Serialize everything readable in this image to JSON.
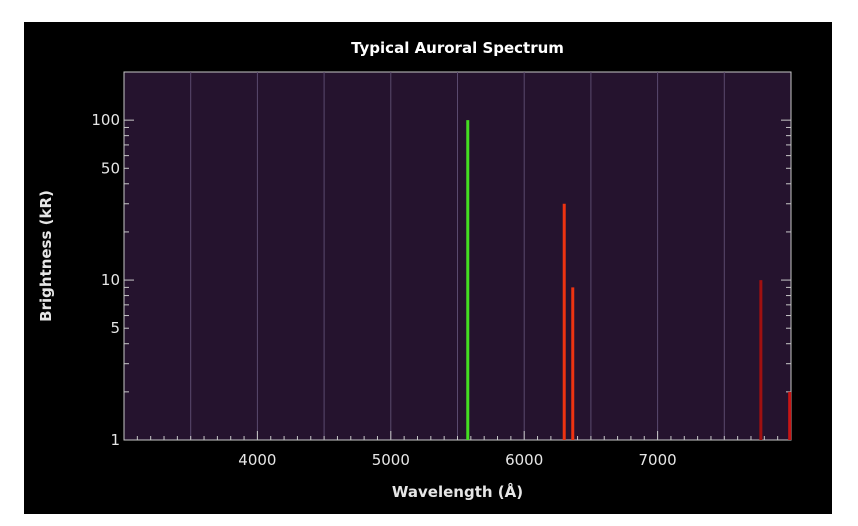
{
  "chart_data": {
    "type": "bar",
    "title": "Typical Auroral Spectrum",
    "xlabel": "Wavelength (Å)",
    "ylabel": "Brightness (kR)",
    "xlim": [
      3000,
      8000
    ],
    "ylim": [
      1,
      200
    ],
    "yscale": "log",
    "grid": true,
    "legend": "none",
    "x_ticks": [
      4000,
      5000,
      6000,
      7000
    ],
    "x_tick_labels": [
      "4000",
      "5000",
      "6000",
      "7000"
    ],
    "y_ticks": [
      1,
      5,
      10,
      50,
      100
    ],
    "y_tick_labels": [
      "1",
      "5",
      "10",
      "50",
      "100"
    ],
    "colors": {
      "background": "#000000",
      "plot_area": "#25132e",
      "grid": "#5a4a6e",
      "axis": "#c8c8c8"
    },
    "lines": [
      {
        "wavelength": 5577,
        "brightness": 100,
        "color": "#44dd22"
      },
      {
        "wavelength": 6300,
        "brightness": 30,
        "color": "#ee3311"
      },
      {
        "wavelength": 6364,
        "brightness": 9,
        "color": "#ee3311"
      },
      {
        "wavelength": 7774,
        "brightness": 10,
        "color": "#a01010"
      },
      {
        "wavelength": 7990,
        "brightness": 2,
        "color": "#c81515"
      }
    ]
  }
}
